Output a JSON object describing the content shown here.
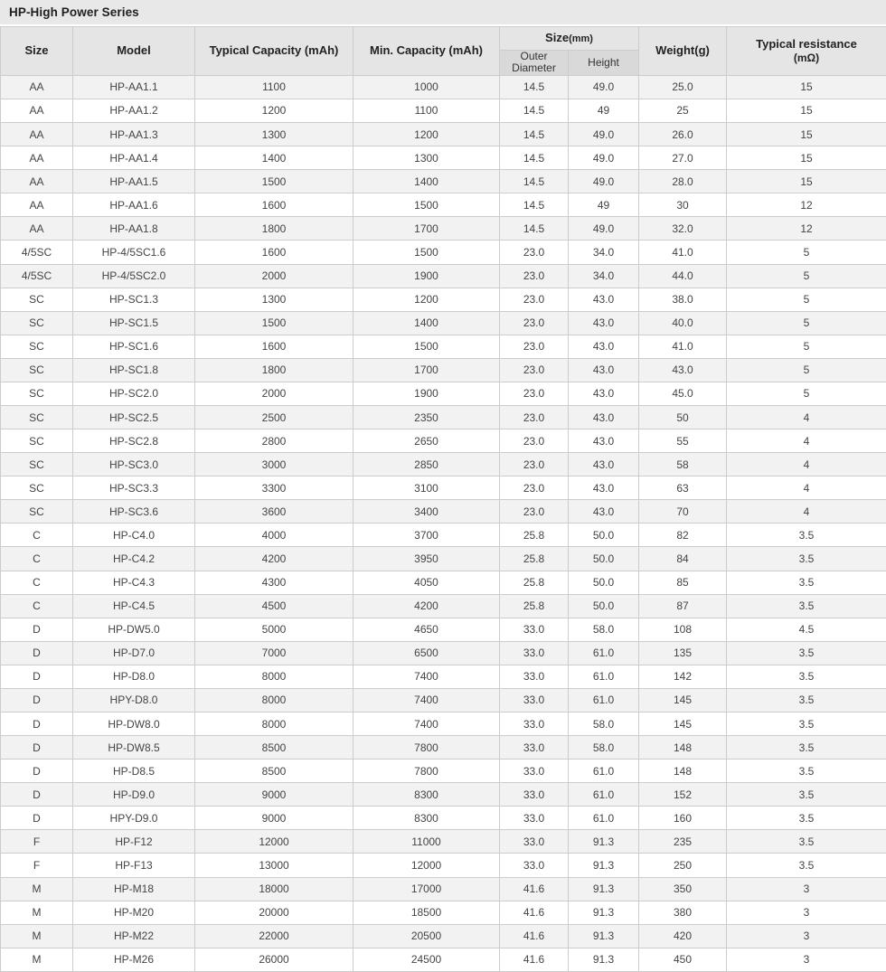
{
  "title": "HP-High Power Series",
  "colors": {
    "title_bar_bg": "#e8e8e8",
    "header_bg": "#e5e5e5",
    "subheader_bg": "#d9d9d9",
    "row_alt_bg": "#f2f2f2",
    "row_bg": "#ffffff",
    "border": "#cccccc",
    "text": "#444444"
  },
  "table": {
    "headers": {
      "size": "Size",
      "model": "Model",
      "typical_capacity": "Typical Capacity (mAh)",
      "min_capacity": "Min. Capacity (mAh)",
      "size_mm": {
        "label": "Size",
        "unit": "(mm)"
      },
      "outer_diameter": "Outer Diameter",
      "height": "Height",
      "weight": "Weight(g)",
      "typical_resistance": {
        "line1": "Typical resistance",
        "line2": "(mΩ)"
      }
    },
    "column_keys": [
      "size",
      "model",
      "typical_capacity",
      "min_capacity",
      "outer_diameter",
      "height",
      "weight",
      "typical_resistance"
    ],
    "rows": [
      [
        "AA",
        "HP-AA1.1",
        "1100",
        "1000",
        "14.5",
        "49.0",
        "25.0",
        "15"
      ],
      [
        "AA",
        "HP-AA1.2",
        "1200",
        "1100",
        "14.5",
        "49",
        "25",
        "15"
      ],
      [
        "AA",
        "HP-AA1.3",
        "1300",
        "1200",
        "14.5",
        "49.0",
        "26.0",
        "15"
      ],
      [
        "AA",
        "HP-AA1.4",
        "1400",
        "1300",
        "14.5",
        "49.0",
        "27.0",
        "15"
      ],
      [
        "AA",
        "HP-AA1.5",
        "1500",
        "1400",
        "14.5",
        "49.0",
        "28.0",
        "15"
      ],
      [
        "AA",
        "HP-AA1.6",
        "1600",
        "1500",
        "14.5",
        "49",
        "30",
        "12"
      ],
      [
        "AA",
        "HP-AA1.8",
        "1800",
        "1700",
        "14.5",
        "49.0",
        "32.0",
        "12"
      ],
      [
        "4/5SC",
        "HP-4/5SC1.6",
        "1600",
        "1500",
        "23.0",
        "34.0",
        "41.0",
        "5"
      ],
      [
        "4/5SC",
        "HP-4/5SC2.0",
        "2000",
        "1900",
        "23.0",
        "34.0",
        "44.0",
        "5"
      ],
      [
        "SC",
        "HP-SC1.3",
        "1300",
        "1200",
        "23.0",
        "43.0",
        "38.0",
        "5"
      ],
      [
        "SC",
        "HP-SC1.5",
        "1500",
        "1400",
        "23.0",
        "43.0",
        "40.0",
        "5"
      ],
      [
        "SC",
        "HP-SC1.6",
        "1600",
        "1500",
        "23.0",
        "43.0",
        "41.0",
        "5"
      ],
      [
        "SC",
        "HP-SC1.8",
        "1800",
        "1700",
        "23.0",
        "43.0",
        "43.0",
        "5"
      ],
      [
        "SC",
        "HP-SC2.0",
        "2000",
        "1900",
        "23.0",
        "43.0",
        "45.0",
        "5"
      ],
      [
        "SC",
        "HP-SC2.5",
        "2500",
        "2350",
        "23.0",
        "43.0",
        "50",
        "4"
      ],
      [
        "SC",
        "HP-SC2.8",
        "2800",
        "2650",
        "23.0",
        "43.0",
        "55",
        "4"
      ],
      [
        "SC",
        "HP-SC3.0",
        "3000",
        "2850",
        "23.0",
        "43.0",
        "58",
        "4"
      ],
      [
        "SC",
        "HP-SC3.3",
        "3300",
        "3100",
        "23.0",
        "43.0",
        "63",
        "4"
      ],
      [
        "SC",
        "HP-SC3.6",
        "3600",
        "3400",
        "23.0",
        "43.0",
        "70",
        "4"
      ],
      [
        "C",
        "HP-C4.0",
        "4000",
        "3700",
        "25.8",
        "50.0",
        "82",
        "3.5"
      ],
      [
        "C",
        "HP-C4.2",
        "4200",
        "3950",
        "25.8",
        "50.0",
        "84",
        "3.5"
      ],
      [
        "C",
        "HP-C4.3",
        "4300",
        "4050",
        "25.8",
        "50.0",
        "85",
        "3.5"
      ],
      [
        "C",
        "HP-C4.5",
        "4500",
        "4200",
        "25.8",
        "50.0",
        "87",
        "3.5"
      ],
      [
        "D",
        "HP-DW5.0",
        "5000",
        "4650",
        "33.0",
        "58.0",
        "108",
        "4.5"
      ],
      [
        "D",
        "HP-D7.0",
        "7000",
        "6500",
        "33.0",
        "61.0",
        "135",
        "3.5"
      ],
      [
        "D",
        "HP-D8.0",
        "8000",
        "7400",
        "33.0",
        "61.0",
        "142",
        "3.5"
      ],
      [
        "D",
        "HPY-D8.0",
        "8000",
        "7400",
        "33.0",
        "61.0",
        "145",
        "3.5"
      ],
      [
        "D",
        "HP-DW8.0",
        "8000",
        "7400",
        "33.0",
        "58.0",
        "145",
        "3.5"
      ],
      [
        "D",
        "HP-DW8.5",
        "8500",
        "7800",
        "33.0",
        "58.0",
        "148",
        "3.5"
      ],
      [
        "D",
        "HP-D8.5",
        "8500",
        "7800",
        "33.0",
        "61.0",
        "148",
        "3.5"
      ],
      [
        "D",
        "HP-D9.0",
        "9000",
        "8300",
        "33.0",
        "61.0",
        "152",
        "3.5"
      ],
      [
        "D",
        "HPY-D9.0",
        "9000",
        "8300",
        "33.0",
        "61.0",
        "160",
        "3.5"
      ],
      [
        "F",
        "HP-F12",
        "12000",
        "11000",
        "33.0",
        "91.3",
        "235",
        "3.5"
      ],
      [
        "F",
        "HP-F13",
        "13000",
        "12000",
        "33.0",
        "91.3",
        "250",
        "3.5"
      ],
      [
        "M",
        "HP-M18",
        "18000",
        "17000",
        "41.6",
        "91.3",
        "350",
        "3"
      ],
      [
        "M",
        "HP-M20",
        "20000",
        "18500",
        "41.6",
        "91.3",
        "380",
        "3"
      ],
      [
        "M",
        "HP-M22",
        "22000",
        "20500",
        "41.6",
        "91.3",
        "420",
        "3"
      ],
      [
        "M",
        "HP-M26",
        "26000",
        "24500",
        "41.6",
        "91.3",
        "450",
        "3"
      ]
    ]
  }
}
